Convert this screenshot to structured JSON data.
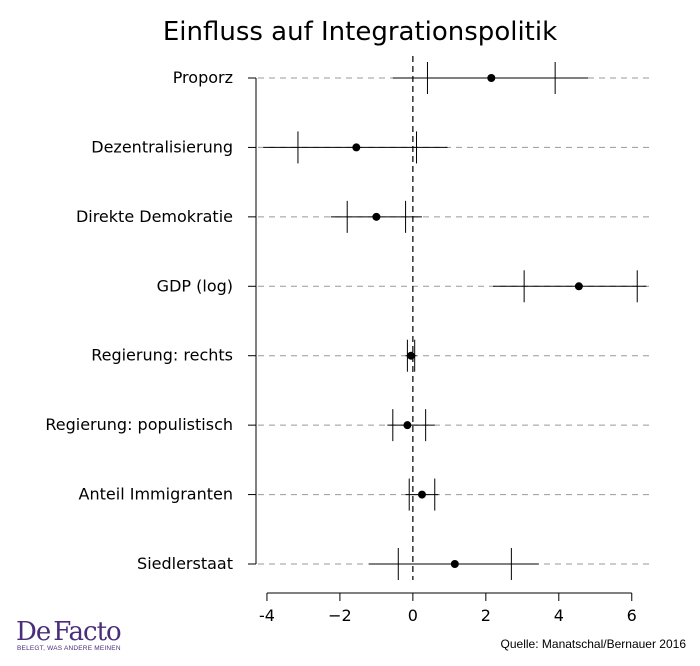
{
  "chart_data": {
    "type": "coefficient_plot",
    "title": "Einfluss auf Integrationspolitik",
    "categories": [
      "Proporz",
      "Dezentralisierung",
      "Direkte Demokratie",
      "GDP (log)",
      "Regierung: rechts",
      "Regierung: populistisch",
      "Anteil Immigranten",
      "Siedlerstaat"
    ],
    "estimates": [
      2.15,
      -1.55,
      -1.0,
      4.55,
      -0.05,
      -0.15,
      0.25,
      1.15
    ],
    "inner_interval": [
      [
        0.4,
        3.9
      ],
      [
        -3.15,
        0.1
      ],
      [
        -1.8,
        -0.2
      ],
      [
        3.05,
        6.15
      ],
      [
        -0.15,
        0.05
      ],
      [
        -0.55,
        0.35
      ],
      [
        -0.1,
        0.6
      ],
      [
        -0.4,
        2.7
      ]
    ],
    "outer_interval": [
      [
        -0.55,
        4.8
      ],
      [
        -4.1,
        0.95
      ],
      [
        -2.25,
        0.25
      ],
      [
        2.2,
        6.4
      ],
      [
        -0.2,
        0.1
      ],
      [
        -0.7,
        0.6
      ],
      [
        -0.2,
        0.7
      ],
      [
        -1.2,
        3.45
      ]
    ],
    "x_ticks": [
      -4,
      -2,
      0,
      2,
      4,
      6
    ],
    "x_tick_labels": [
      "-4",
      "−2",
      "0",
      "2",
      "4",
      "6"
    ],
    "xlim": [
      -4.3,
      6.5
    ],
    "reference_line": 0,
    "grid": "dashed horizontal per category"
  },
  "source": "Quelle: Manatschal/Bernauer 2016",
  "logo": {
    "name": "DeFacto",
    "tagline": "BELEGT, WAS ANDERE MEINEN",
    "color": "#4a2d7a"
  }
}
